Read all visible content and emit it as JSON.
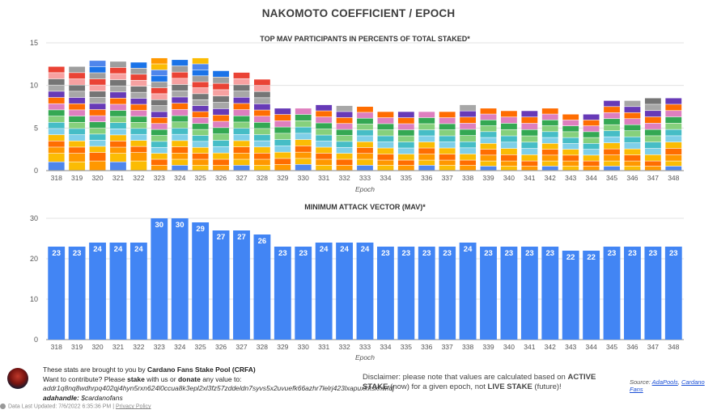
{
  "title": "NAKOMOTO COEFFICIENT / EPOCH",
  "chart_data": [
    {
      "type": "bar",
      "stacked": true,
      "title": "TOP MAV PARTICIPANTS IN PERCENTS OF TOTAL STAKED*",
      "xlabel": "Epoch",
      "ylim": [
        0,
        15
      ],
      "yticks": [
        0,
        5,
        10,
        15
      ],
      "grid": true,
      "categories": [
        "318",
        "319",
        "320",
        "321",
        "322",
        "323",
        "324",
        "325",
        "326",
        "327",
        "328",
        "329",
        "330",
        "331",
        "332",
        "333",
        "334",
        "335",
        "336",
        "337",
        "338",
        "339",
        "340",
        "341",
        "342",
        "343",
        "344",
        "345",
        "346",
        "347",
        "348"
      ],
      "segment_palette": [
        "#4f86ec",
        "#fbbc04",
        "#ff9800",
        "#ff6d01",
        "#fbbc04",
        "#7fcfe8",
        "#46bdc6",
        "#86d07c",
        "#34a853",
        "#de7fbf",
        "#ff6d01",
        "#673ab7",
        "#a7a7a7",
        "#757575",
        "#f7a1a1",
        "#ea4335",
        "#9e9e9e",
        "#1a73e8"
      ],
      "totals": [
        12.2,
        12.2,
        12.9,
        12.8,
        12.7,
        13.2,
        13.0,
        13.2,
        11.7,
        11.5,
        10.7,
        7.3,
        7.3,
        7.7,
        7.6,
        7.5,
        6.9,
        6.9,
        6.9,
        6.9,
        7.7,
        7.3,
        7.0,
        7.0,
        7.3,
        6.6,
        6.6,
        8.2,
        8.2,
        8.5,
        8.5
      ],
      "segments": [
        [
          1.0,
          1.0,
          1.1,
          1.0,
          1.1,
          0.6,
          0.6,
          0.6,
          0.6,
          0.6,
          0.6,
          0.7,
          0.7,
          0.6,
          0.6,
          0.6,
          0.6,
          0.6,
          0.6,
          0.6,
          0.6,
          0.5,
          0.5,
          0.5,
          0.5,
          0.5,
          0.5,
          0.5,
          0.5,
          0.5,
          0.5
        ],
        [
          1.0,
          1.0,
          1.0,
          1.0,
          1.0,
          0.7,
          0.7,
          0.7,
          0.7,
          0.7,
          0.7,
          0.7,
          0.7,
          0.7,
          0.7,
          0.7,
          0.6,
          0.6,
          0.6,
          0.6,
          0.6,
          0.6,
          0.6,
          0.6,
          0.6,
          0.6,
          0.6,
          0.6,
          0.6,
          0.6,
          0.6
        ]
      ]
    },
    {
      "type": "bar",
      "title": "MINIMUM ATTACK VECTOR (MAV)*",
      "xlabel": "Epoch",
      "ylim": [
        0,
        30
      ],
      "yticks": [
        0,
        10,
        20,
        30
      ],
      "grid": true,
      "color": "#4285f4",
      "categories": [
        "318",
        "319",
        "320",
        "321",
        "322",
        "323",
        "324",
        "325",
        "326",
        "327",
        "328",
        "329",
        "330",
        "331",
        "332",
        "333",
        "334",
        "335",
        "336",
        "337",
        "338",
        "339",
        "340",
        "341",
        "342",
        "343",
        "344",
        "345",
        "346",
        "347",
        "348"
      ],
      "values": [
        23,
        23,
        24,
        24,
        24,
        30,
        30,
        29,
        27,
        27,
        26,
        23,
        23,
        24,
        24,
        24,
        23,
        23,
        23,
        23,
        24,
        23,
        23,
        23,
        23,
        22,
        22,
        23,
        23,
        23,
        23
      ]
    }
  ],
  "footer": {
    "line1_pre": "These stats are brought to you by ",
    "line1_bold": "Cardano Fans Stake Pool (CRFA)",
    "line2_pre": "Want to contribute? Please ",
    "line2_b1": "stake",
    "line2_mid": " with us or ",
    "line2_b2": "donate",
    "line2_post": " any value to:",
    "address": "addr1q8nq8wdhrpq402qj4hyn5rxn624l0ccua8k3epl2xl3fz57zddeldn7syvs5x2uvuefk66azhr7lelrj423lxapuxkksknwfdj",
    "handle_label": "adahandle:",
    "handle_value": "$cardanofans",
    "disclaimer_pre": "Disclaimer: please note that values are calculated based on ",
    "disclaimer_b1": "ACTIVE STAKE",
    "disclaimer_mid": " (now) for a given epoch, not ",
    "disclaimer_b2": "LIVE STAKE",
    "disclaimer_post": " (future)!",
    "source_label": "Source: ",
    "source_link1": "AdaPools",
    "source_link2": "Cardano Fans",
    "updated": "Data Last Updated: 7/6/2022 6:35:36 PM",
    "privacy": "Privacy Policy"
  }
}
